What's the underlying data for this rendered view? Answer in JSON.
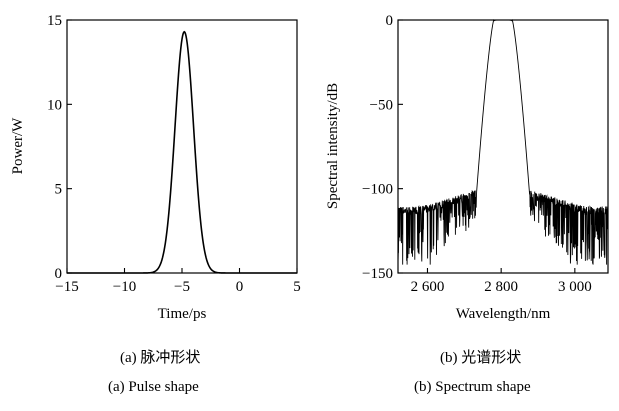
{
  "chart_data": [
    {
      "type": "line",
      "panel": "a",
      "xlabel": "Time/ps",
      "ylabel": "Power/W",
      "xlim": [
        -15,
        5
      ],
      "ylim": [
        0,
        15
      ],
      "xticks": [
        -15,
        -10,
        -5,
        0,
        5
      ],
      "xtick_labels": [
        "−15",
        "−10",
        "−5",
        "0",
        "5"
      ],
      "yticks": [
        0,
        5,
        10,
        15
      ],
      "ytick_labels": [
        "0",
        "5",
        "10",
        "15"
      ],
      "grid": false,
      "series": [
        {
          "peak_time": -4.8,
          "peak_power": 14.3,
          "fwhm": 1.9,
          "shape": "gaussian",
          "color": "#000000"
        }
      ],
      "caption_cn": "(a)  脉冲形状",
      "caption_en": "(a)  Pulse shape"
    },
    {
      "type": "line",
      "panel": "b",
      "xlabel": "Wavelength/nm",
      "ylabel": "Spectral intensity/dB",
      "xlim": [
        2520,
        3090
      ],
      "ylim": [
        -150,
        0
      ],
      "xticks": [
        2600,
        2800,
        3000
      ],
      "xtick_labels": [
        "2 600",
        "2 800",
        "3 000"
      ],
      "yticks": [
        0,
        -50,
        -100,
        -150
      ],
      "ytick_labels": [
        "0",
        "−50",
        "−100",
        "−150"
      ],
      "grid": false,
      "series": [
        {
          "center": 2805,
          "plateau_top": 0,
          "plateau_halfwidth": 25,
          "edge_wavelengths": [
            2733,
            2877
          ],
          "noise_floor_edge": -103,
          "noise_floor_far": -113,
          "noise_min": -145,
          "color": "#000000"
        }
      ],
      "caption_cn": "(b)  光谱形状",
      "caption_en": "(b)  Spectrum shape"
    }
  ]
}
